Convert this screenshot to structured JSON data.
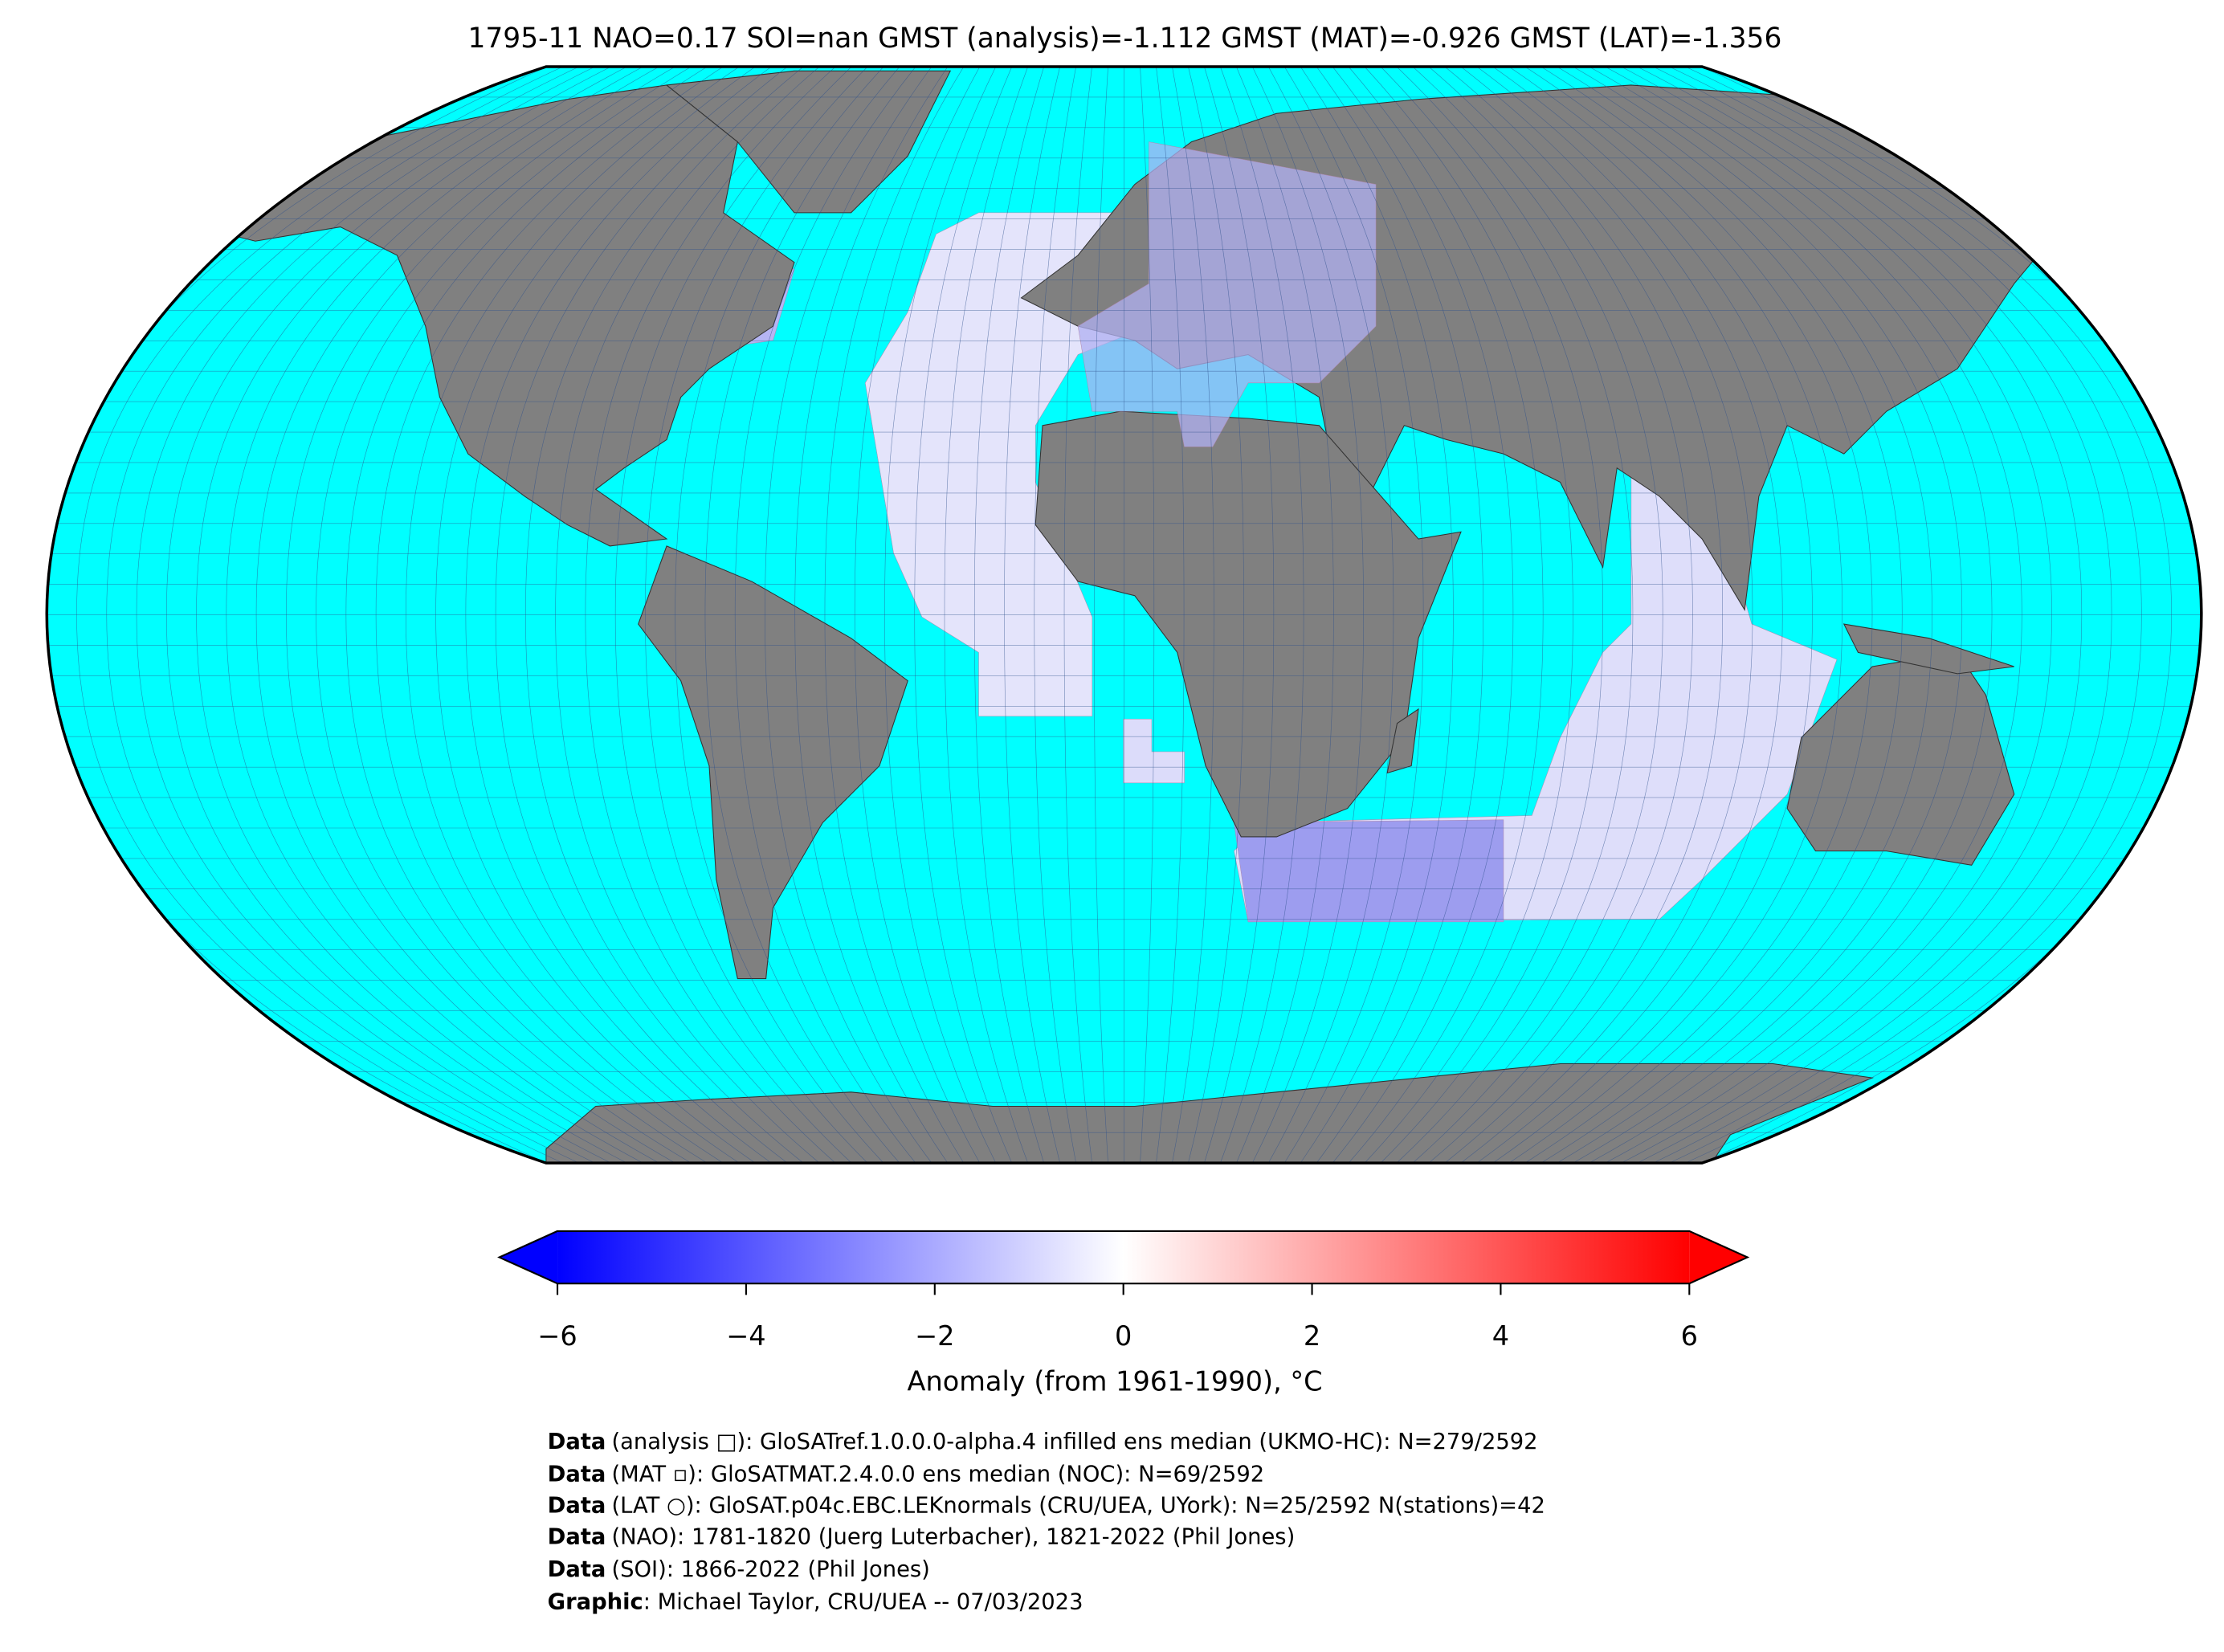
{
  "title": "1795-11 NAO=0.17 SOI=nan GMST (analysis)=-1.112 GMST (MAT)=-0.926 GMST (LAT)=-1.356",
  "colorbar": {
    "label": "Anomaly (from 1961-1990), °C",
    "clim": [
      -6,
      6
    ],
    "colors": [
      "#0000ff",
      "#ffffff",
      "#ff0000"
    ],
    "ticks": [
      {
        "value": -6,
        "label": "−6"
      },
      {
        "value": -4,
        "label": "−4"
      },
      {
        "value": -2,
        "label": "−2"
      },
      0,
      2,
      4,
      6
    ]
  },
  "footer": {
    "lines": [
      {
        "label": "Data",
        "text": "(analysis □): GloSATref.1.0.0.0-alpha.4 infilled ens median (UKMO-HC): N=279/2592"
      },
      {
        "label": "Data",
        "text": "(MAT ▫): GloSATMAT.2.4.0.0 ens median (NOC): N=69/2592"
      },
      {
        "label": "Data",
        "text": "(LAT ○): GloSAT.p04c.EBC.LEKnormals (CRU/UEA, UYork): N=25/2592 N(stations)=42"
      },
      {
        "label": "Data",
        "text": "(NAO): 1781-1820 (Juerg Luterbacher), 1821-2022 (Phil Jones)"
      },
      {
        "label": "Data",
        "text": "(SOI): 1866-2022 (Phil Jones)"
      },
      {
        "label": "Graphic",
        "text": ": Michael Taylor, CRU/UEA -- 07/03/2023"
      }
    ]
  }
}
